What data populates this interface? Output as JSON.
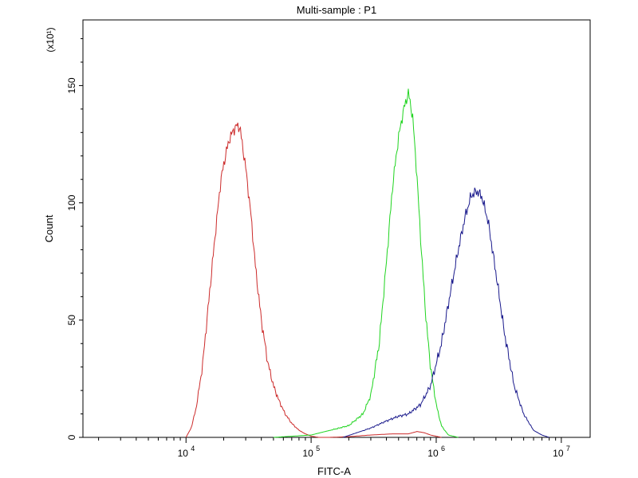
{
  "chart_data": {
    "type": "line",
    "title": "Multi-sample : P1",
    "xlabel": "FITC-A",
    "ylabel": "Count",
    "y_multiplier": "(x10¹)",
    "x_scale": "log",
    "xlim": [
      1500,
      17000000
    ],
    "ylim": [
      0,
      178
    ],
    "grid": false,
    "x_major_ticks": [
      10000,
      100000,
      1000000,
      10000000
    ],
    "x_tick_labels": [
      {
        "base": "10",
        "exp": "4"
      },
      {
        "base": "10",
        "exp": "5"
      },
      {
        "base": "10",
        "exp": "6"
      },
      {
        "base": "10",
        "exp": "7"
      }
    ],
    "y_ticks": [
      0,
      50,
      100,
      150
    ],
    "y_tick_labels": [
      "0",
      "50",
      "100",
      "150"
    ],
    "series": [
      {
        "color": "#cc2b2b",
        "x": [
          10000,
          11000,
          12000,
          13500,
          15000,
          17000,
          19000,
          21000,
          22500,
          24000,
          25500,
          27000,
          28500,
          30000,
          33000,
          36000,
          40000,
          45000,
          50000,
          55000,
          62000,
          70000,
          80000,
          90000,
          100000,
          115000,
          140000,
          200000,
          300000,
          450000,
          600000,
          700000,
          800000,
          900000,
          1100000
        ],
        "y": [
          0,
          4,
          12,
          30,
          55,
          85,
          110,
          122,
          128,
          131,
          133,
          132,
          123,
          115,
          95,
          72,
          50,
          32,
          22,
          16,
          10,
          6,
          3,
          1.5,
          0.5,
          0,
          0,
          0.3,
          1,
          1.5,
          1.5,
          2.5,
          2,
          1,
          0
        ]
      },
      {
        "color": "#1fd41f",
        "x": [
          50000,
          100000,
          200000,
          260000,
          300000,
          350000,
          400000,
          450000,
          500000,
          550000,
          600000,
          650000,
          700000,
          760000,
          830000,
          900000,
          1000000,
          1100000,
          1250000,
          1500000
        ],
        "y": [
          0,
          1,
          5,
          10,
          18,
          40,
          75,
          108,
          128,
          140,
          147,
          136,
          112,
          80,
          50,
          30,
          14,
          5,
          1,
          0
        ]
      },
      {
        "color": "#1a1a8c",
        "x": [
          180000,
          300000,
          400000,
          500000,
          600000,
          750000,
          900000,
          1100000,
          1300000,
          1500000,
          1700000,
          1900000,
          2100000,
          2300000,
          2600000,
          3000000,
          3500000,
          4200000,
          5000000,
          6000000,
          7000000,
          8000000
        ],
        "y": [
          0,
          4,
          7,
          9,
          10,
          14,
          22,
          40,
          62,
          80,
          94,
          103,
          105,
          103,
          92,
          70,
          45,
          22,
          10,
          3,
          1,
          0
        ]
      }
    ]
  }
}
